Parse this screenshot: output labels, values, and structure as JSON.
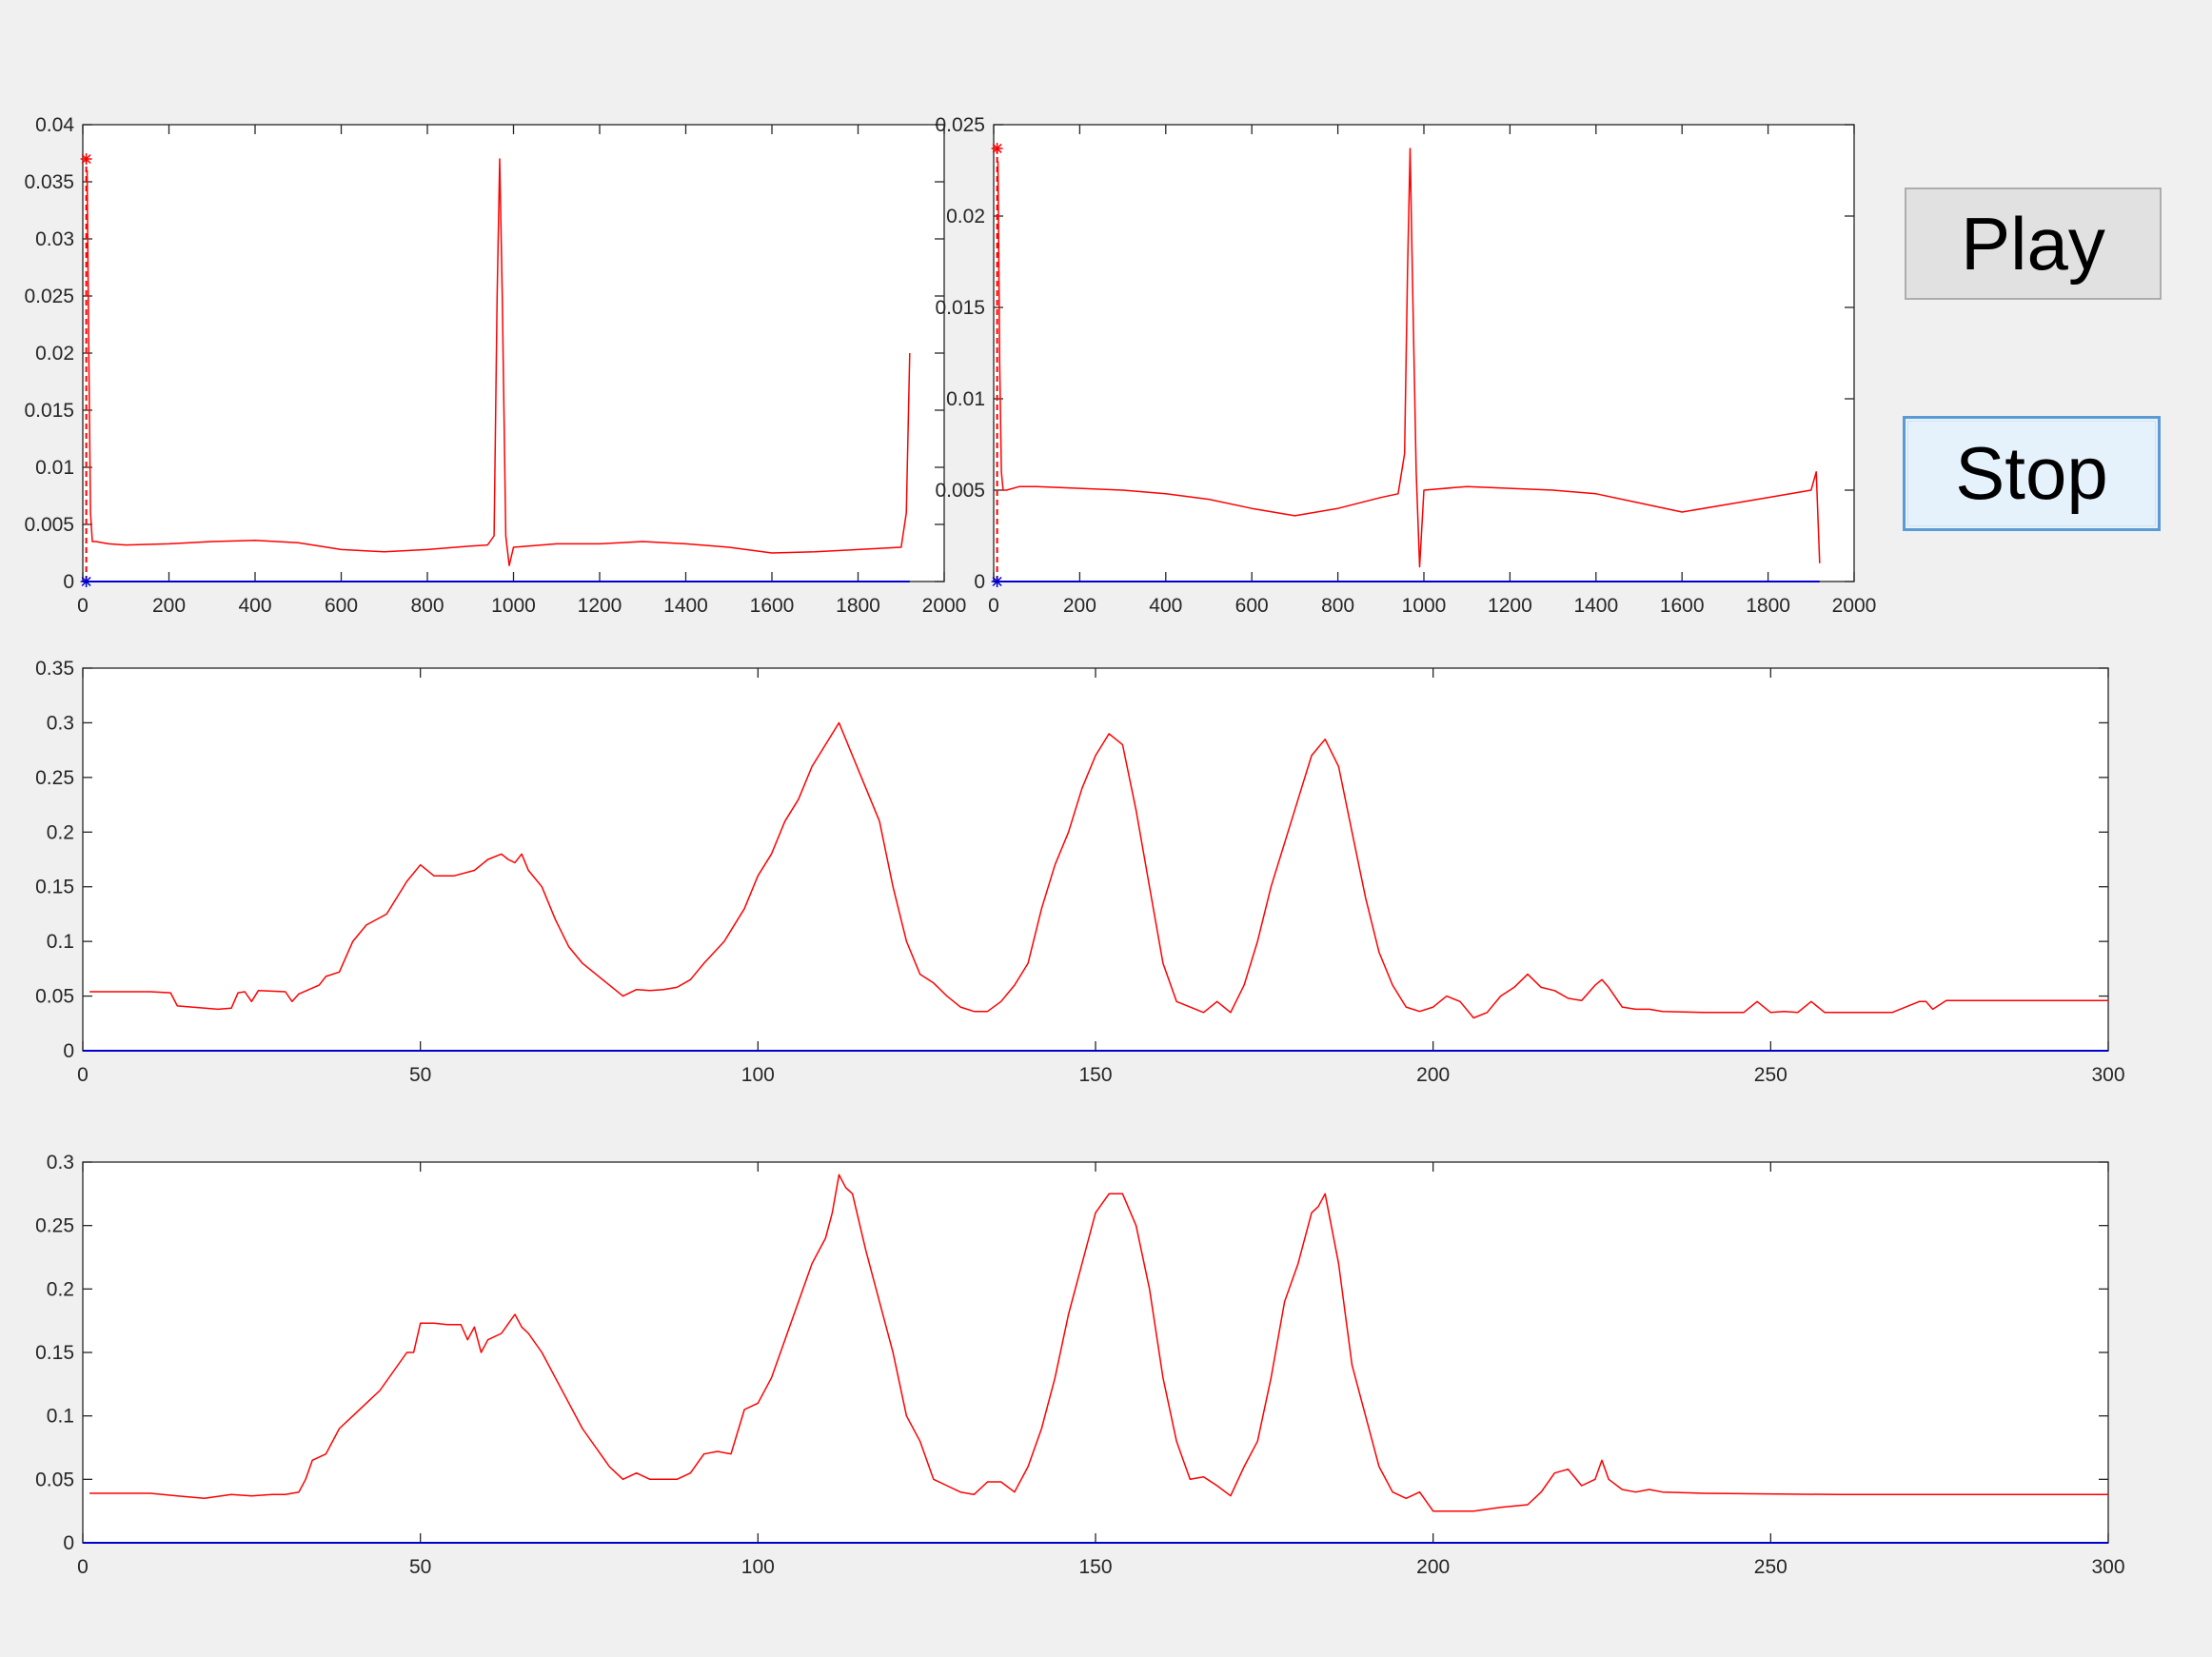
{
  "buttons": {
    "play_label": "Play",
    "stop_label": "Stop"
  },
  "colors": {
    "signal": "#ff0000",
    "baseline": "#0000cd",
    "axis": "#262626",
    "background": "#f0f0f0",
    "plot_bg": "#ffffff"
  },
  "chart_data": [
    {
      "type": "line",
      "xlim": [
        0,
        2000
      ],
      "ylim": [
        0,
        0.04
      ],
      "xticks": [
        0,
        200,
        400,
        600,
        800,
        1000,
        1200,
        1400,
        1600,
        1800,
        2000
      ],
      "xtick_labels": [
        "0",
        "200",
        "400",
        "600",
        "800",
        "1000",
        "1200",
        "1400",
        "1600",
        "1800",
        "2000"
      ],
      "yticks": [
        0,
        0.005,
        0.01,
        0.015,
        0.02,
        0.025,
        0.03,
        0.035,
        0.04
      ],
      "ytick_labels": [
        "0",
        "0.005",
        "0.01",
        "0.015",
        "0.02",
        "0.025",
        "0.03",
        "0.035",
        "0.04"
      ],
      "series": [
        {
          "style": "stem",
          "color": "#ff0000",
          "x": [
            8
          ],
          "values": [
            0.037
          ]
        },
        {
          "color": "#ff0000",
          "x": [
            10,
            14,
            18,
            22,
            30,
            60,
            100,
            200,
            300,
            400,
            500,
            600,
            700,
            800,
            900,
            940,
            955,
            962,
            968,
            974,
            982,
            990,
            1000,
            1100,
            1200,
            1300,
            1400,
            1500,
            1600,
            1700,
            1800,
            1900,
            1912,
            1920
          ],
          "values": [
            0.036,
            0.02,
            0.006,
            0.0035,
            0.0035,
            0.0033,
            0.0032,
            0.0033,
            0.0035,
            0.0036,
            0.0034,
            0.0028,
            0.0026,
            0.0028,
            0.0031,
            0.0032,
            0.004,
            0.025,
            0.037,
            0.025,
            0.004,
            0.0014,
            0.003,
            0.0033,
            0.0033,
            0.0035,
            0.0033,
            0.003,
            0.0025,
            0.0026,
            0.0028,
            0.003,
            0.006,
            0.02
          ]
        },
        {
          "color": "#0000cd",
          "x": [
            0,
            1920
          ],
          "values": [
            0,
            0
          ]
        }
      ]
    },
    {
      "type": "line",
      "xlim": [
        0,
        2000
      ],
      "ylim": [
        0,
        0.025
      ],
      "xticks": [
        0,
        200,
        400,
        600,
        800,
        1000,
        1200,
        1400,
        1600,
        1800,
        2000
      ],
      "xtick_labels": [
        "0",
        "200",
        "400",
        "600",
        "800",
        "1000",
        "1200",
        "1400",
        "1600",
        "1800",
        "2000"
      ],
      "yticks": [
        0,
        0.005,
        0.01,
        0.015,
        0.02,
        0.025
      ],
      "ytick_labels": [
        "0",
        "0.005",
        "0.01",
        "0.015",
        "0.02",
        "0.025"
      ],
      "series": [
        {
          "style": "stem",
          "color": "#ff0000",
          "x": [
            8
          ],
          "values": [
            0.0237
          ]
        },
        {
          "color": "#ff0000",
          "x": [
            10,
            14,
            18,
            22,
            30,
            60,
            100,
            200,
            300,
            400,
            500,
            600,
            700,
            800,
            900,
            940,
            955,
            962,
            968,
            974,
            982,
            990,
            1000,
            1100,
            1200,
            1300,
            1400,
            1500,
            1600,
            1700,
            1800,
            1900,
            1912,
            1920
          ],
          "values": [
            0.023,
            0.012,
            0.006,
            0.005,
            0.005,
            0.0052,
            0.0052,
            0.0051,
            0.005,
            0.0048,
            0.0045,
            0.004,
            0.0036,
            0.004,
            0.0046,
            0.0048,
            0.007,
            0.017,
            0.0237,
            0.016,
            0.006,
            0.0008,
            0.005,
            0.0052,
            0.0051,
            0.005,
            0.0048,
            0.0043,
            0.0038,
            0.0042,
            0.0046,
            0.005,
            0.006,
            0.001
          ]
        },
        {
          "color": "#0000cd",
          "x": [
            0,
            1920
          ],
          "values": [
            0,
            0
          ]
        }
      ]
    },
    {
      "type": "line",
      "xlim": [
        0,
        300
      ],
      "ylim": [
        0,
        0.35
      ],
      "xticks": [
        0,
        50,
        100,
        150,
        200,
        250,
        300
      ],
      "xtick_labels": [
        "0",
        "50",
        "100",
        "150",
        "200",
        "250",
        "300"
      ],
      "yticks": [
        0,
        0.05,
        0.1,
        0.15,
        0.2,
        0.25,
        0.3,
        0.35
      ],
      "ytick_labels": [
        "0",
        "0.05",
        "0.1",
        "0.15",
        "0.2",
        "0.25",
        "0.3",
        "0.35"
      ],
      "series": [
        {
          "color": "#ff0000",
          "x": [
            1,
            10,
            13,
            14,
            20,
            22,
            23,
            24,
            25,
            26,
            30,
            31,
            32,
            35,
            36,
            38,
            40,
            42,
            45,
            48,
            50,
            52,
            55,
            58,
            60,
            62,
            63,
            64,
            65,
            66,
            68,
            70,
            72,
            74,
            76,
            78,
            80,
            82,
            84,
            86,
            88,
            90,
            92,
            95,
            98,
            100,
            102,
            104,
            106,
            108,
            110,
            112,
            114,
            116,
            118,
            120,
            122,
            124,
            126,
            128,
            130,
            132,
            134,
            136,
            138,
            140,
            142,
            144,
            146,
            148,
            150,
            152,
            154,
            156,
            158,
            160,
            162,
            164,
            166,
            168,
            170,
            172,
            174,
            176,
            178,
            180,
            182,
            184,
            186,
            188,
            190,
            192,
            194,
            196,
            198,
            200,
            202,
            204,
            206,
            208,
            210,
            212,
            214,
            216,
            218,
            220,
            222,
            224,
            225,
            226,
            228,
            230,
            232,
            234,
            240,
            246,
            248,
            250,
            252,
            254,
            256,
            258,
            264,
            268,
            272,
            273,
            274,
            276,
            282,
            290,
            300
          ],
          "values": [
            0.054,
            0.054,
            0.053,
            0.041,
            0.038,
            0.039,
            0.053,
            0.054,
            0.045,
            0.055,
            0.054,
            0.045,
            0.052,
            0.06,
            0.068,
            0.072,
            0.1,
            0.115,
            0.125,
            0.155,
            0.17,
            0.16,
            0.16,
            0.165,
            0.175,
            0.18,
            0.175,
            0.172,
            0.18,
            0.165,
            0.15,
            0.12,
            0.095,
            0.08,
            0.07,
            0.06,
            0.05,
            0.056,
            0.055,
            0.056,
            0.058,
            0.065,
            0.08,
            0.1,
            0.13,
            0.16,
            0.18,
            0.21,
            0.23,
            0.26,
            0.28,
            0.3,
            0.27,
            0.24,
            0.21,
            0.15,
            0.1,
            0.07,
            0.062,
            0.05,
            0.04,
            0.036,
            0.036,
            0.045,
            0.06,
            0.08,
            0.13,
            0.17,
            0.2,
            0.24,
            0.27,
            0.29,
            0.28,
            0.22,
            0.15,
            0.08,
            0.045,
            0.04,
            0.035,
            0.045,
            0.035,
            0.06,
            0.1,
            0.15,
            0.19,
            0.23,
            0.27,
            0.285,
            0.26,
            0.2,
            0.14,
            0.09,
            0.06,
            0.04,
            0.036,
            0.04,
            0.05,
            0.045,
            0.03,
            0.035,
            0.05,
            0.058,
            0.07,
            0.058,
            0.055,
            0.048,
            0.046,
            0.06,
            0.065,
            0.058,
            0.04,
            0.038,
            0.038,
            0.036,
            0.035,
            0.035,
            0.045,
            0.035,
            0.036,
            0.035,
            0.045,
            0.035,
            0.035,
            0.035,
            0.045,
            0.045,
            0.038,
            0.046,
            0.046,
            0.046,
            0.046
          ]
        },
        {
          "color": "#0000cd",
          "x": [
            0,
            300
          ],
          "values": [
            0,
            0
          ]
        }
      ]
    },
    {
      "type": "line",
      "xlim": [
        0,
        300
      ],
      "ylim": [
        0,
        0.3
      ],
      "xticks": [
        0,
        50,
        100,
        150,
        200,
        250,
        300
      ],
      "xtick_labels": [
        "0",
        "50",
        "100",
        "150",
        "200",
        "250",
        "300"
      ],
      "yticks": [
        0,
        0.05,
        0.1,
        0.15,
        0.2,
        0.25,
        0.3
      ],
      "ytick_labels": [
        "0",
        "0.05",
        "0.1",
        "0.15",
        "0.2",
        "0.25",
        "0.3"
      ],
      "series": [
        {
          "color": "#ff0000",
          "x": [
            1,
            5,
            10,
            14,
            18,
            22,
            25,
            28,
            30,
            32,
            33,
            34,
            36,
            38,
            40,
            42,
            44,
            46,
            48,
            49,
            50,
            52,
            54,
            56,
            57,
            58,
            59,
            60,
            62,
            64,
            65,
            66,
            68,
            70,
            72,
            74,
            76,
            78,
            79,
            80,
            82,
            84,
            86,
            88,
            90,
            92,
            94,
            96,
            98,
            100,
            102,
            104,
            106,
            108,
            110,
            111,
            112,
            113,
            114,
            116,
            118,
            120,
            122,
            124,
            126,
            128,
            130,
            132,
            134,
            136,
            138,
            140,
            142,
            144,
            146,
            148,
            150,
            152,
            154,
            156,
            158,
            160,
            162,
            164,
            166,
            168,
            170,
            172,
            174,
            176,
            178,
            180,
            182,
            183,
            184,
            186,
            188,
            190,
            192,
            194,
            196,
            198,
            200,
            202,
            206,
            210,
            214,
            216,
            218,
            220,
            222,
            224,
            225,
            226,
            228,
            230,
            232,
            234,
            240,
            260,
            280,
            300
          ],
          "values": [
            0.039,
            0.039,
            0.039,
            0.037,
            0.035,
            0.038,
            0.037,
            0.038,
            0.038,
            0.04,
            0.05,
            0.065,
            0.07,
            0.09,
            0.1,
            0.11,
            0.12,
            0.135,
            0.15,
            0.15,
            0.173,
            0.173,
            0.172,
            0.172,
            0.16,
            0.17,
            0.15,
            0.16,
            0.165,
            0.18,
            0.17,
            0.165,
            0.15,
            0.13,
            0.11,
            0.09,
            0.075,
            0.06,
            0.055,
            0.05,
            0.055,
            0.05,
            0.05,
            0.05,
            0.055,
            0.07,
            0.072,
            0.07,
            0.105,
            0.11,
            0.13,
            0.16,
            0.19,
            0.22,
            0.24,
            0.26,
            0.29,
            0.28,
            0.275,
            0.23,
            0.19,
            0.15,
            0.1,
            0.08,
            0.05,
            0.045,
            0.04,
            0.038,
            0.048,
            0.048,
            0.04,
            0.06,
            0.09,
            0.13,
            0.18,
            0.22,
            0.26,
            0.275,
            0.275,
            0.25,
            0.2,
            0.13,
            0.08,
            0.05,
            0.052,
            0.045,
            0.037,
            0.06,
            0.08,
            0.13,
            0.19,
            0.22,
            0.26,
            0.265,
            0.275,
            0.22,
            0.14,
            0.1,
            0.06,
            0.04,
            0.035,
            0.04,
            0.025,
            0.025,
            0.025,
            0.028,
            0.03,
            0.04,
            0.055,
            0.058,
            0.045,
            0.05,
            0.065,
            0.05,
            0.042,
            0.04,
            0.042,
            0.04,
            0.039,
            0.038,
            0.038,
            0.038
          ]
        },
        {
          "color": "#0000cd",
          "x": [
            0,
            300
          ],
          "values": [
            0,
            0
          ]
        }
      ]
    }
  ]
}
